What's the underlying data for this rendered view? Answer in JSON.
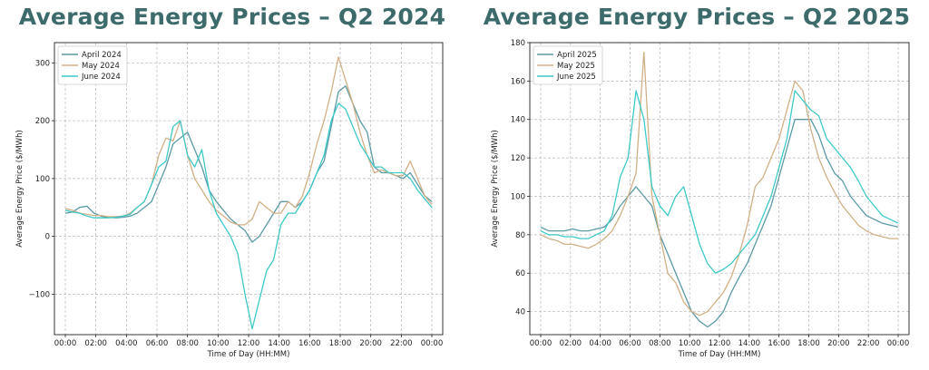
{
  "chart_data": [
    {
      "type": "line",
      "title": "Average Energy Prices – Q2 2024",
      "xlabel": "Time of Day (HH:MM)",
      "ylabel": "Average Energy Price ($/MWh)",
      "ylim": [
        -170,
        335
      ],
      "yticks": [
        -100,
        0,
        100,
        200,
        300
      ],
      "yticklabels": [
        "−100",
        "0",
        "100",
        "200",
        "300"
      ],
      "xticklabels": [
        "00:00",
        "02:00",
        "04:00",
        "06:00",
        "08:00",
        "10:00",
        "12:00",
        "14:00",
        "16:00",
        "18:00",
        "20:00",
        "22:00",
        "00:00"
      ],
      "grid": true,
      "legend": "top-left",
      "series": [
        {
          "name": "April 2024",
          "color": "#5b9aa6",
          "values": [
            40,
            42,
            50,
            52,
            40,
            35,
            33,
            32,
            33,
            35,
            40,
            50,
            60,
            90,
            120,
            160,
            170,
            180,
            150,
            120,
            80,
            60,
            45,
            30,
            20,
            10,
            -10,
            0,
            20,
            40,
            60,
            60,
            50,
            60,
            80,
            110,
            130,
            190,
            250,
            260,
            230,
            200,
            180,
            120,
            110,
            110,
            105,
            100,
            110,
            90,
            70,
            60
          ]
        },
        {
          "name": "May 2024",
          "color": "#d0b085",
          "values": [
            48,
            45,
            40,
            38,
            36,
            36,
            34,
            34,
            35,
            40,
            50,
            60,
            90,
            140,
            170,
            165,
            200,
            140,
            100,
            80,
            60,
            45,
            35,
            25,
            20,
            20,
            30,
            60,
            50,
            40,
            40,
            60,
            50,
            70,
            110,
            160,
            200,
            250,
            310,
            270,
            230,
            180,
            140,
            110,
            115,
            110,
            105,
            105,
            130,
            100,
            70,
            55
          ]
        },
        {
          "name": "June 2024",
          "color": "#3ec9c9",
          "values": [
            45,
            42,
            40,
            35,
            32,
            32,
            32,
            33,
            35,
            38,
            50,
            60,
            90,
            120,
            130,
            190,
            200,
            140,
            120,
            150,
            80,
            40,
            20,
            0,
            -30,
            -100,
            -160,
            -110,
            -60,
            -40,
            20,
            40,
            40,
            60,
            80,
            110,
            140,
            200,
            230,
            220,
            190,
            160,
            140,
            120,
            120,
            110,
            110,
            110,
            100,
            80,
            65,
            50
          ]
        }
      ]
    },
    {
      "type": "line",
      "title": "Average Energy Prices – Q2 2025",
      "xlabel": "Time of Day (HH:MM)",
      "ylabel": "Average Energy Price ($/MWh)",
      "ylim": [
        28,
        180
      ],
      "yticks": [
        40,
        60,
        80,
        100,
        120,
        140,
        160,
        180
      ],
      "yticklabels": [
        "40",
        "60",
        "80",
        "100",
        "120",
        "140",
        "160",
        "180"
      ],
      "xticklabels": [
        "00:00",
        "02:00",
        "04:00",
        "06:00",
        "08:00",
        "10:00",
        "12:00",
        "14:00",
        "16:00",
        "18:00",
        "20:00",
        "22:00",
        "00:00"
      ],
      "grid": true,
      "legend": "top-left",
      "series": [
        {
          "name": "April 2025",
          "color": "#5b9aa6",
          "values": [
            84,
            82,
            82,
            82,
            83,
            82,
            82,
            83,
            84,
            88,
            95,
            100,
            105,
            100,
            95,
            80,
            70,
            60,
            50,
            40,
            35,
            32,
            35,
            40,
            50,
            58,
            65,
            75,
            85,
            95,
            110,
            125,
            140,
            140,
            140,
            132,
            120,
            112,
            108,
            100,
            95,
            90,
            88,
            86,
            85,
            84
          ]
        },
        {
          "name": "May 2025",
          "color": "#d0b085",
          "values": [
            80,
            78,
            77,
            75,
            75,
            74,
            73,
            75,
            78,
            82,
            90,
            100,
            112,
            175,
            100,
            80,
            60,
            55,
            45,
            40,
            38,
            40,
            45,
            50,
            58,
            70,
            85,
            105,
            110,
            120,
            130,
            145,
            160,
            155,
            135,
            120,
            110,
            102,
            95,
            90,
            85,
            82,
            80,
            79,
            78,
            78
          ]
        },
        {
          "name": "June 2025",
          "color": "#3ec9c9",
          "values": [
            82,
            80,
            80,
            79,
            79,
            78,
            78,
            80,
            82,
            90,
            110,
            120,
            155,
            140,
            105,
            95,
            90,
            100,
            105,
            90,
            75,
            65,
            60,
            62,
            65,
            70,
            75,
            80,
            90,
            100,
            115,
            130,
            155,
            150,
            145,
            142,
            130,
            125,
            120,
            115,
            108,
            100,
            95,
            90,
            88,
            86
          ]
        }
      ]
    }
  ]
}
